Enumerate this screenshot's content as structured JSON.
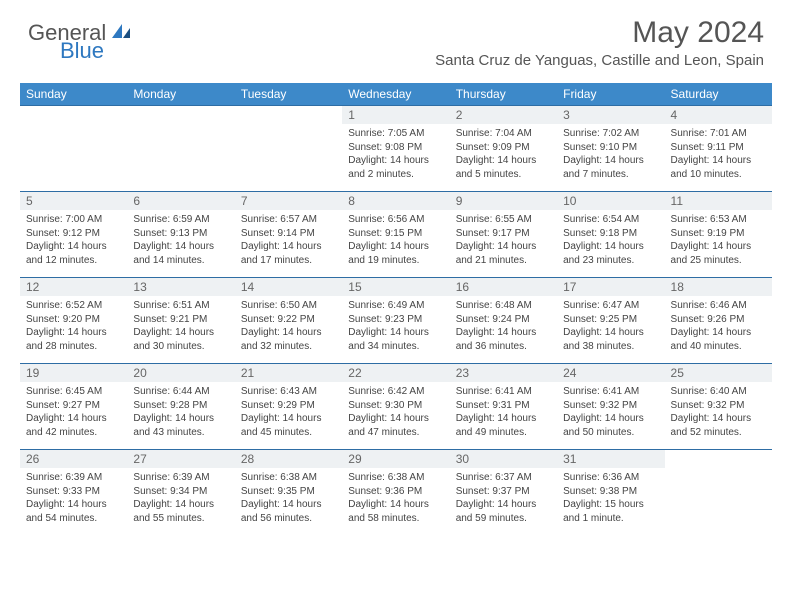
{
  "brand": {
    "part1": "General",
    "part2": "Blue"
  },
  "title": "May 2024",
  "location": "Santa Cruz de Yanguas, Castille and Leon, Spain",
  "colors": {
    "header_bg": "#3d89c9",
    "header_text": "#ffffff",
    "row_border": "#2e6da4",
    "daynum_bg": "#eef1f3",
    "body_text": "#444444",
    "title_text": "#555555",
    "brand_gray": "#555555",
    "brand_blue": "#2e78c0",
    "page_bg": "#ffffff"
  },
  "day_headers": [
    "Sunday",
    "Monday",
    "Tuesday",
    "Wednesday",
    "Thursday",
    "Friday",
    "Saturday"
  ],
  "weeks": [
    [
      {
        "n": "",
        "sr": "",
        "ss": "",
        "dl": ""
      },
      {
        "n": "",
        "sr": "",
        "ss": "",
        "dl": ""
      },
      {
        "n": "",
        "sr": "",
        "ss": "",
        "dl": ""
      },
      {
        "n": "1",
        "sr": "Sunrise: 7:05 AM",
        "ss": "Sunset: 9:08 PM",
        "dl": "Daylight: 14 hours and 2 minutes."
      },
      {
        "n": "2",
        "sr": "Sunrise: 7:04 AM",
        "ss": "Sunset: 9:09 PM",
        "dl": "Daylight: 14 hours and 5 minutes."
      },
      {
        "n": "3",
        "sr": "Sunrise: 7:02 AM",
        "ss": "Sunset: 9:10 PM",
        "dl": "Daylight: 14 hours and 7 minutes."
      },
      {
        "n": "4",
        "sr": "Sunrise: 7:01 AM",
        "ss": "Sunset: 9:11 PM",
        "dl": "Daylight: 14 hours and 10 minutes."
      }
    ],
    [
      {
        "n": "5",
        "sr": "Sunrise: 7:00 AM",
        "ss": "Sunset: 9:12 PM",
        "dl": "Daylight: 14 hours and 12 minutes."
      },
      {
        "n": "6",
        "sr": "Sunrise: 6:59 AM",
        "ss": "Sunset: 9:13 PM",
        "dl": "Daylight: 14 hours and 14 minutes."
      },
      {
        "n": "7",
        "sr": "Sunrise: 6:57 AM",
        "ss": "Sunset: 9:14 PM",
        "dl": "Daylight: 14 hours and 17 minutes."
      },
      {
        "n": "8",
        "sr": "Sunrise: 6:56 AM",
        "ss": "Sunset: 9:15 PM",
        "dl": "Daylight: 14 hours and 19 minutes."
      },
      {
        "n": "9",
        "sr": "Sunrise: 6:55 AM",
        "ss": "Sunset: 9:17 PM",
        "dl": "Daylight: 14 hours and 21 minutes."
      },
      {
        "n": "10",
        "sr": "Sunrise: 6:54 AM",
        "ss": "Sunset: 9:18 PM",
        "dl": "Daylight: 14 hours and 23 minutes."
      },
      {
        "n": "11",
        "sr": "Sunrise: 6:53 AM",
        "ss": "Sunset: 9:19 PM",
        "dl": "Daylight: 14 hours and 25 minutes."
      }
    ],
    [
      {
        "n": "12",
        "sr": "Sunrise: 6:52 AM",
        "ss": "Sunset: 9:20 PM",
        "dl": "Daylight: 14 hours and 28 minutes."
      },
      {
        "n": "13",
        "sr": "Sunrise: 6:51 AM",
        "ss": "Sunset: 9:21 PM",
        "dl": "Daylight: 14 hours and 30 minutes."
      },
      {
        "n": "14",
        "sr": "Sunrise: 6:50 AM",
        "ss": "Sunset: 9:22 PM",
        "dl": "Daylight: 14 hours and 32 minutes."
      },
      {
        "n": "15",
        "sr": "Sunrise: 6:49 AM",
        "ss": "Sunset: 9:23 PM",
        "dl": "Daylight: 14 hours and 34 minutes."
      },
      {
        "n": "16",
        "sr": "Sunrise: 6:48 AM",
        "ss": "Sunset: 9:24 PM",
        "dl": "Daylight: 14 hours and 36 minutes."
      },
      {
        "n": "17",
        "sr": "Sunrise: 6:47 AM",
        "ss": "Sunset: 9:25 PM",
        "dl": "Daylight: 14 hours and 38 minutes."
      },
      {
        "n": "18",
        "sr": "Sunrise: 6:46 AM",
        "ss": "Sunset: 9:26 PM",
        "dl": "Daylight: 14 hours and 40 minutes."
      }
    ],
    [
      {
        "n": "19",
        "sr": "Sunrise: 6:45 AM",
        "ss": "Sunset: 9:27 PM",
        "dl": "Daylight: 14 hours and 42 minutes."
      },
      {
        "n": "20",
        "sr": "Sunrise: 6:44 AM",
        "ss": "Sunset: 9:28 PM",
        "dl": "Daylight: 14 hours and 43 minutes."
      },
      {
        "n": "21",
        "sr": "Sunrise: 6:43 AM",
        "ss": "Sunset: 9:29 PM",
        "dl": "Daylight: 14 hours and 45 minutes."
      },
      {
        "n": "22",
        "sr": "Sunrise: 6:42 AM",
        "ss": "Sunset: 9:30 PM",
        "dl": "Daylight: 14 hours and 47 minutes."
      },
      {
        "n": "23",
        "sr": "Sunrise: 6:41 AM",
        "ss": "Sunset: 9:31 PM",
        "dl": "Daylight: 14 hours and 49 minutes."
      },
      {
        "n": "24",
        "sr": "Sunrise: 6:41 AM",
        "ss": "Sunset: 9:32 PM",
        "dl": "Daylight: 14 hours and 50 minutes."
      },
      {
        "n": "25",
        "sr": "Sunrise: 6:40 AM",
        "ss": "Sunset: 9:32 PM",
        "dl": "Daylight: 14 hours and 52 minutes."
      }
    ],
    [
      {
        "n": "26",
        "sr": "Sunrise: 6:39 AM",
        "ss": "Sunset: 9:33 PM",
        "dl": "Daylight: 14 hours and 54 minutes."
      },
      {
        "n": "27",
        "sr": "Sunrise: 6:39 AM",
        "ss": "Sunset: 9:34 PM",
        "dl": "Daylight: 14 hours and 55 minutes."
      },
      {
        "n": "28",
        "sr": "Sunrise: 6:38 AM",
        "ss": "Sunset: 9:35 PM",
        "dl": "Daylight: 14 hours and 56 minutes."
      },
      {
        "n": "29",
        "sr": "Sunrise: 6:38 AM",
        "ss": "Sunset: 9:36 PM",
        "dl": "Daylight: 14 hours and 58 minutes."
      },
      {
        "n": "30",
        "sr": "Sunrise: 6:37 AM",
        "ss": "Sunset: 9:37 PM",
        "dl": "Daylight: 14 hours and 59 minutes."
      },
      {
        "n": "31",
        "sr": "Sunrise: 6:36 AM",
        "ss": "Sunset: 9:38 PM",
        "dl": "Daylight: 15 hours and 1 minute."
      },
      {
        "n": "",
        "sr": "",
        "ss": "",
        "dl": ""
      }
    ]
  ]
}
